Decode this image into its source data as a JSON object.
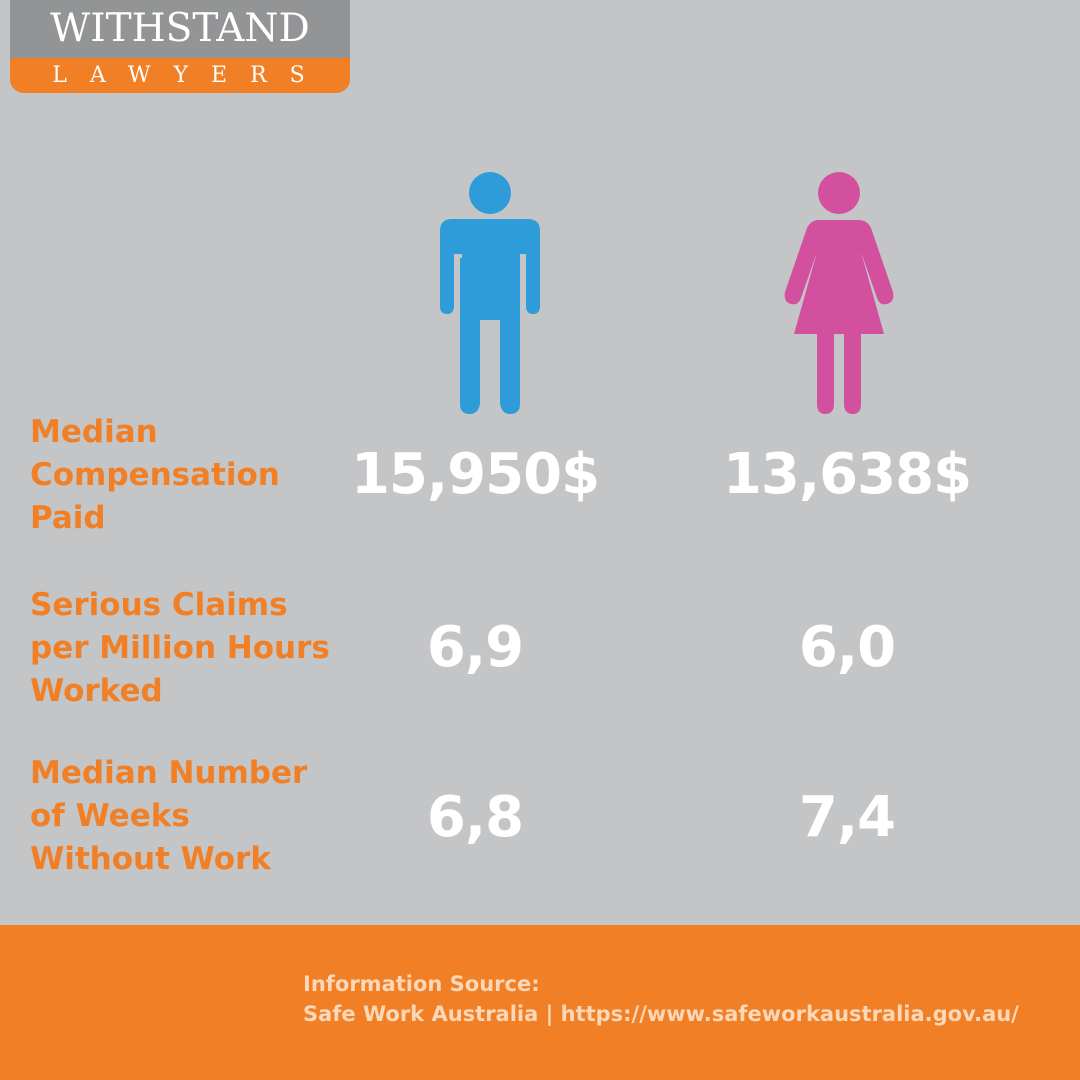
{
  "logo": {
    "title": "WITHSTAND",
    "subtitle": "LAWYERS"
  },
  "figures": {
    "male": {
      "icon": "male-figure-icon",
      "color": "#2e9cd9"
    },
    "female": {
      "icon": "female-figure-icon",
      "color": "#d3509f"
    }
  },
  "rows": [
    {
      "label": "Median Compensation Paid",
      "male": "15,950$",
      "female": "13,638$"
    },
    {
      "label": "Serious Claims per Million Hours Worked",
      "male": "6,9",
      "female": "6,0"
    },
    {
      "label": "Median Number of Weeks Without Work",
      "male": "6,8",
      "female": "7,4"
    }
  ],
  "footer": {
    "source_label": "Information Source:",
    "source_text": "Safe Work Australia | https://www.safeworkaustralia.gov.au/"
  },
  "colors": {
    "background": "#c4c5c7",
    "accent": "#f07f26",
    "value_text": "#ffffff"
  }
}
